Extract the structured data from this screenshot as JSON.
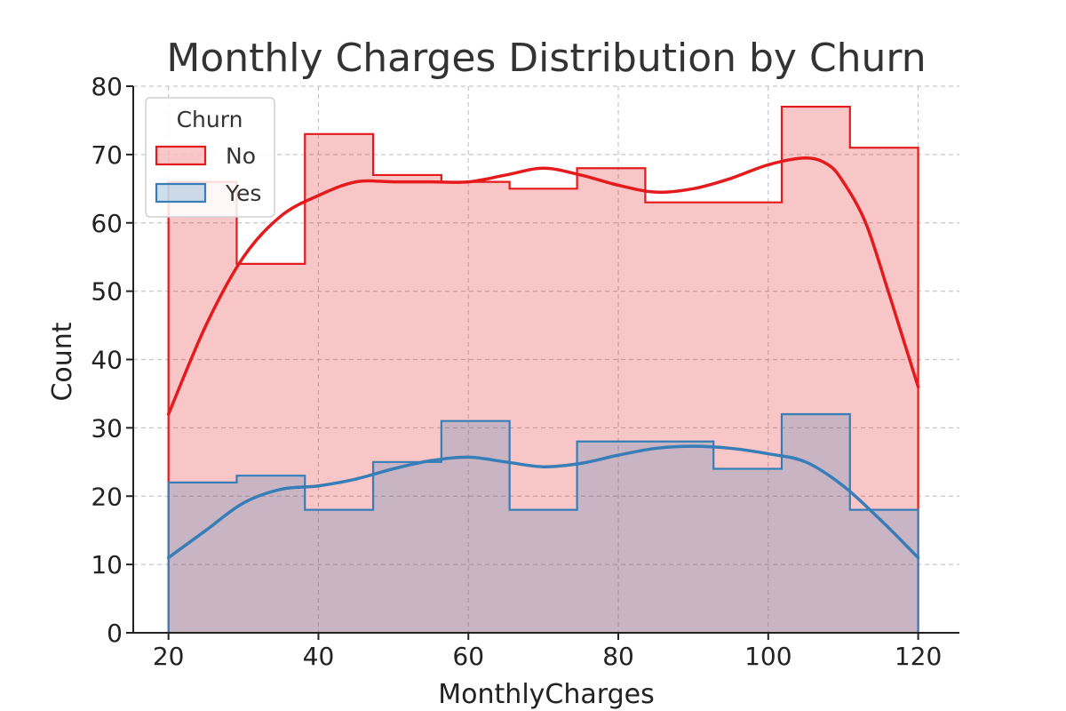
{
  "chart_data": {
    "type": "histogram",
    "title": "Monthly Charges Distribution by Churn",
    "xlabel": "MonthlyCharges",
    "ylabel": "Count",
    "xlim": [
      15.3,
      125.5
    ],
    "ylim": [
      0,
      80
    ],
    "xticks": [
      20,
      40,
      60,
      80,
      100,
      120
    ],
    "yticks": [
      0,
      10,
      20,
      30,
      40,
      50,
      60,
      70,
      80
    ],
    "grid": true,
    "legend_title": "Churn",
    "legend_position": "top-left",
    "bin_edges": [
      20,
      29.1,
      38.2,
      47.3,
      56.4,
      65.5,
      74.5,
      83.6,
      92.7,
      101.8,
      110.9,
      120
    ],
    "series": [
      {
        "name": "No",
        "color": "#e41a1c",
        "counts": [
          66,
          54,
          73,
          67,
          66,
          65,
          68,
          63,
          63,
          77,
          71
        ],
        "kde": [
          [
            20,
            32
          ],
          [
            25,
            45
          ],
          [
            30,
            55
          ],
          [
            35,
            61
          ],
          [
            40,
            64
          ],
          [
            45,
            66
          ],
          [
            50,
            66
          ],
          [
            55,
            66
          ],
          [
            60,
            66
          ],
          [
            65,
            67
          ],
          [
            70,
            68
          ],
          [
            75,
            67
          ],
          [
            80,
            65.5
          ],
          [
            85,
            64.5
          ],
          [
            90,
            65
          ],
          [
            95,
            66.5
          ],
          [
            100,
            68.5
          ],
          [
            105,
            69.5
          ],
          [
            108,
            68.5
          ],
          [
            110,
            66
          ],
          [
            113,
            60
          ],
          [
            116,
            50
          ],
          [
            118,
            43
          ],
          [
            120,
            36
          ]
        ]
      },
      {
        "name": "Yes",
        "color": "#377eb8",
        "counts": [
          22,
          23,
          18,
          25,
          31,
          18,
          28,
          28,
          24,
          32,
          18
        ],
        "kde": [
          [
            20,
            11
          ],
          [
            25,
            15
          ],
          [
            30,
            19
          ],
          [
            35,
            21
          ],
          [
            40,
            21.5
          ],
          [
            45,
            22.5
          ],
          [
            50,
            24
          ],
          [
            55,
            25.2
          ],
          [
            60,
            25.7
          ],
          [
            65,
            25
          ],
          [
            70,
            24.3
          ],
          [
            75,
            24.8
          ],
          [
            80,
            26
          ],
          [
            85,
            27
          ],
          [
            90,
            27.3
          ],
          [
            95,
            27
          ],
          [
            100,
            26.2
          ],
          [
            105,
            25
          ],
          [
            110,
            21.5
          ],
          [
            115,
            16.5
          ],
          [
            120,
            11
          ]
        ]
      }
    ]
  }
}
